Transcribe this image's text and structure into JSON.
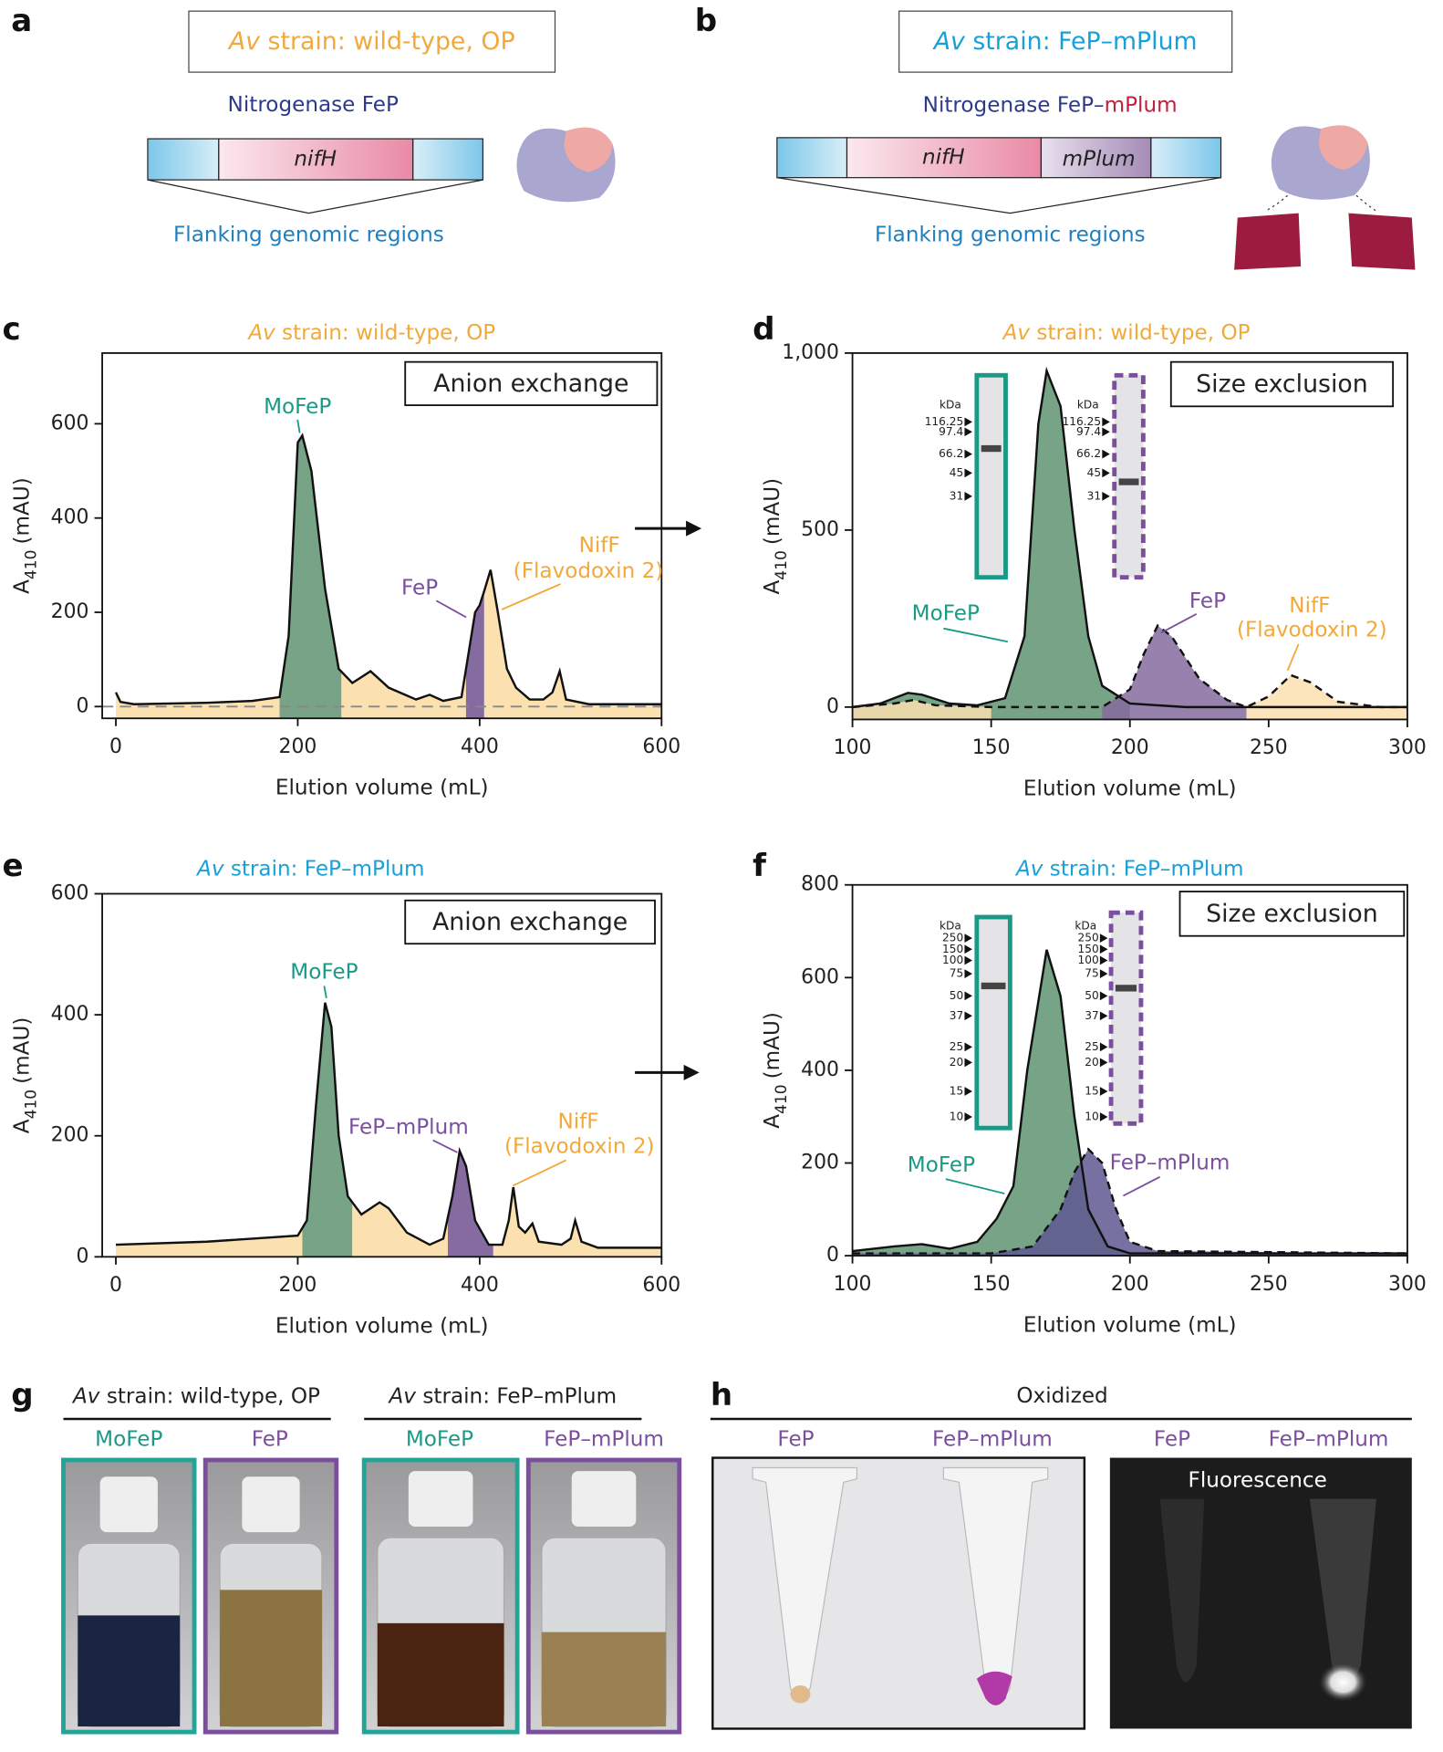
{
  "panel_a": {
    "letter": "a",
    "strain_italic": "Av",
    "strain": "strain: wild-type, OP",
    "protein": "Nitrogenase FeP",
    "gene": "nifH",
    "flank": "Flanking genomic regions"
  },
  "panel_b": {
    "letter": "b",
    "strain_italic": "Av",
    "strain": "strain: FeP–mPlum",
    "protein": "Nitrogenase FeP–",
    "protein_tag": "mPlum",
    "gene": "nifH",
    "tag_gene": "mPlum",
    "flank": "Flanking genomic regions"
  },
  "chart_data": [
    {
      "type": "line",
      "panel": "c",
      "title_italic": "Av",
      "title": "strain: wild-type, OP",
      "title_color": "#f2a93b",
      "method": "Anion exchange",
      "xlabel": "Elution volume (mL)",
      "ylabel": "A",
      "ylabel_sub": "410",
      "ylabel_unit": "(mAU)",
      "xlim": [
        -15,
        600
      ],
      "ylim": [
        -25,
        750
      ],
      "xticks": [
        0,
        200,
        400,
        600
      ],
      "yticks": [
        0,
        200,
        400,
        600
      ],
      "baseline_dashed": true,
      "series": [
        {
          "style": "solid",
          "x": [
            0,
            5,
            20,
            100,
            150,
            180,
            190,
            200,
            205,
            215,
            230,
            245,
            260,
            280,
            300,
            330,
            345,
            360,
            380,
            395,
            400,
            405,
            412,
            420,
            430,
            440,
            455,
            470,
            480,
            488,
            495,
            520,
            600
          ],
          "values": [
            30,
            10,
            5,
            8,
            12,
            20,
            150,
            560,
            575,
            500,
            250,
            80,
            50,
            75,
            40,
            15,
            25,
            12,
            20,
            200,
            215,
            245,
            290,
            200,
            80,
            40,
            15,
            15,
            30,
            75,
            15,
            5,
            5
          ],
          "fills": [
            {
              "from": -15,
              "to": 180,
              "color": "#fbe1b0"
            },
            {
              "from": 180,
              "to": 248,
              "color": "#77a486"
            },
            {
              "from": 248,
              "to": 385,
              "color": "#fbe1b0"
            },
            {
              "from": 385,
              "to": 405,
              "color": "#856b9f"
            },
            {
              "from": 405,
              "to": 600,
              "color": "#fbe1b0"
            }
          ]
        }
      ],
      "annotations": [
        {
          "text": "MoFeP",
          "color": "#1a9a86"
        },
        {
          "text": "FeP",
          "color": "#7b4f9e"
        },
        {
          "text": "NifF",
          "color": "#f2a93b"
        },
        {
          "text": "(Flavodoxin 2)",
          "color": "#f2a93b"
        }
      ]
    },
    {
      "type": "line",
      "panel": "d",
      "title_italic": "Av",
      "title": "strain: wild-type, OP",
      "title_color": "#f2a93b",
      "method": "Size exclusion",
      "xlabel": "Elution volume (mL)",
      "ylabel": "A",
      "ylabel_sub": "410",
      "ylabel_unit": "(mAU)",
      "xlim": [
        100,
        300
      ],
      "ylim": [
        -35,
        1000
      ],
      "xticks": [
        100,
        150,
        200,
        250,
        300
      ],
      "yticks": [
        0,
        500,
        {
          "value": 1000,
          "label": "1,000"
        }
      ],
      "series": [
        {
          "style": "solid",
          "x": [
            100,
            110,
            120,
            125,
            135,
            145,
            155,
            162,
            167,
            170,
            175,
            180,
            185,
            190,
            200,
            220,
            300
          ],
          "values": [
            0,
            10,
            40,
            35,
            10,
            5,
            25,
            200,
            800,
            950,
            850,
            500,
            200,
            60,
            10,
            0,
            0
          ],
          "fills": [
            {
              "from": 100,
              "to": 200,
              "color": "#77a486"
            }
          ]
        },
        {
          "style": "dashed",
          "x": [
            100,
            115,
            122,
            130,
            150,
            190,
            200,
            205,
            210,
            215,
            225,
            235,
            242,
            250,
            258,
            265,
            275,
            290,
            300
          ],
          "values": [
            0,
            10,
            20,
            5,
            0,
            0,
            50,
            150,
            230,
            200,
            80,
            20,
            0,
            30,
            90,
            70,
            15,
            0,
            0
          ],
          "fills": [
            {
              "from": 100,
              "to": 150,
              "color": "#fbe1b0"
            },
            {
              "from": 190,
              "to": 242,
              "color": "#856b9f"
            },
            {
              "from": 242,
              "to": 300,
              "color": "#fbe1b0"
            }
          ]
        }
      ],
      "gel_markers": [
        "kDa",
        "116.25",
        "97.4",
        "66.2",
        "45",
        "31"
      ],
      "gels": [
        {
          "border": "#1a9a86",
          "style": "solid"
        },
        {
          "border": "#7b4f9e",
          "style": "dashed"
        }
      ],
      "annotations": [
        {
          "text": "MoFeP",
          "color": "#1a9a86"
        },
        {
          "text": "FeP",
          "color": "#7b4f9e"
        },
        {
          "text": "NifF",
          "color": "#f2a93b"
        },
        {
          "text": "(Flavodoxin 2)",
          "color": "#f2a93b"
        }
      ]
    },
    {
      "type": "line",
      "panel": "e",
      "title_italic": "Av",
      "title": "strain: FeP–mPlum",
      "title_color": "#1aa0d8",
      "method": "Anion exchange",
      "xlabel": "Elution volume (mL)",
      "ylabel": "A",
      "ylabel_sub": "410",
      "ylabel_unit": "(mAU)",
      "xlim": [
        -15,
        600
      ],
      "ylim": [
        0,
        600
      ],
      "xticks": [
        0,
        200,
        400,
        600
      ],
      "yticks": [
        0,
        200,
        400,
        600
      ],
      "series": [
        {
          "style": "solid",
          "x": [
            0,
            100,
            150,
            200,
            210,
            220,
            230,
            237,
            245,
            255,
            270,
            290,
            300,
            320,
            345,
            360,
            370,
            378,
            385,
            395,
            410,
            425,
            432,
            437,
            443,
            450,
            458,
            465,
            490,
            500,
            505,
            512,
            530,
            600
          ],
          "values": [
            20,
            25,
            30,
            35,
            60,
            250,
            420,
            380,
            200,
            100,
            70,
            90,
            80,
            40,
            20,
            30,
            100,
            175,
            150,
            60,
            20,
            20,
            60,
            115,
            50,
            40,
            55,
            25,
            20,
            30,
            60,
            25,
            15,
            15
          ],
          "fills": [
            {
              "from": -15,
              "to": 205,
              "color": "#fbe1b0"
            },
            {
              "from": 205,
              "to": 260,
              "color": "#77a486"
            },
            {
              "from": 260,
              "to": 365,
              "color": "#fbe1b0"
            },
            {
              "from": 365,
              "to": 415,
              "color": "#856b9f"
            },
            {
              "from": 415,
              "to": 600,
              "color": "#fbe1b0"
            }
          ]
        }
      ],
      "annotations": [
        {
          "text": "MoFeP",
          "color": "#1a9a86"
        },
        {
          "text": "FeP–mPlum",
          "color": "#7b4f9e"
        },
        {
          "text": "NifF",
          "color": "#f2a93b"
        },
        {
          "text": "(Flavodoxin 2)",
          "color": "#f2a93b"
        }
      ]
    },
    {
      "type": "line",
      "panel": "f",
      "title_italic": "Av",
      "title": "strain: FeP–mPlum",
      "title_color": "#1aa0d8",
      "method": "Size exclusion",
      "xlabel": "Elution volume (mL)",
      "ylabel": "A",
      "ylabel_sub": "410",
      "ylabel_unit": "(mAU)",
      "xlim": [
        100,
        300
      ],
      "ylim": [
        0,
        800
      ],
      "xticks": [
        100,
        150,
        200,
        250,
        300
      ],
      "yticks": [
        0,
        200,
        400,
        600,
        800
      ],
      "series": [
        {
          "style": "solid",
          "x": [
            100,
            115,
            125,
            135,
            145,
            152,
            158,
            163,
            170,
            175,
            180,
            185,
            192,
            200,
            300
          ],
          "values": [
            10,
            20,
            25,
            15,
            30,
            80,
            150,
            400,
            660,
            560,
            300,
            100,
            20,
            5,
            5
          ],
          "fills": [
            {
              "from": 100,
              "to": 300,
              "color": "#77a486"
            }
          ]
        },
        {
          "style": "dashed",
          "x": [
            100,
            150,
            165,
            175,
            180,
            185,
            190,
            195,
            200,
            210,
            300
          ],
          "values": [
            5,
            5,
            20,
            100,
            180,
            230,
            200,
            100,
            30,
            10,
            5
          ],
          "fills": [
            {
              "from": 100,
              "to": 300,
              "color": "#5f5890"
            }
          ]
        }
      ],
      "gel_markers": [
        "kDa",
        "250",
        "150",
        "100",
        "75",
        "50",
        "37",
        "25",
        "20",
        "15",
        "10"
      ],
      "gels": [
        {
          "border": "#1a9a86",
          "style": "solid"
        },
        {
          "border": "#7b4f9e",
          "style": "dashed"
        }
      ],
      "annotations": [
        {
          "text": "MoFeP",
          "color": "#1a9a86"
        },
        {
          "text": "FeP–mPlum",
          "color": "#7b4f9e"
        }
      ]
    }
  ],
  "panel_g": {
    "letter": "g",
    "groups": [
      {
        "strain_italic": "Av",
        "strain": "strain: wild-type, OP",
        "samples": [
          "MoFeP",
          "FeP"
        ]
      },
      {
        "strain_italic": "Av",
        "strain": "strain: FeP–mPlum",
        "samples": [
          "MoFeP",
          "FeP–mPlum"
        ]
      }
    ]
  },
  "panel_h": {
    "letter": "h",
    "heading": "Oxidized",
    "samples": [
      "FeP",
      "FeP–mPlum",
      "FeP",
      "FeP–mPlum"
    ],
    "fluorescence_label": "Fluorescence"
  }
}
